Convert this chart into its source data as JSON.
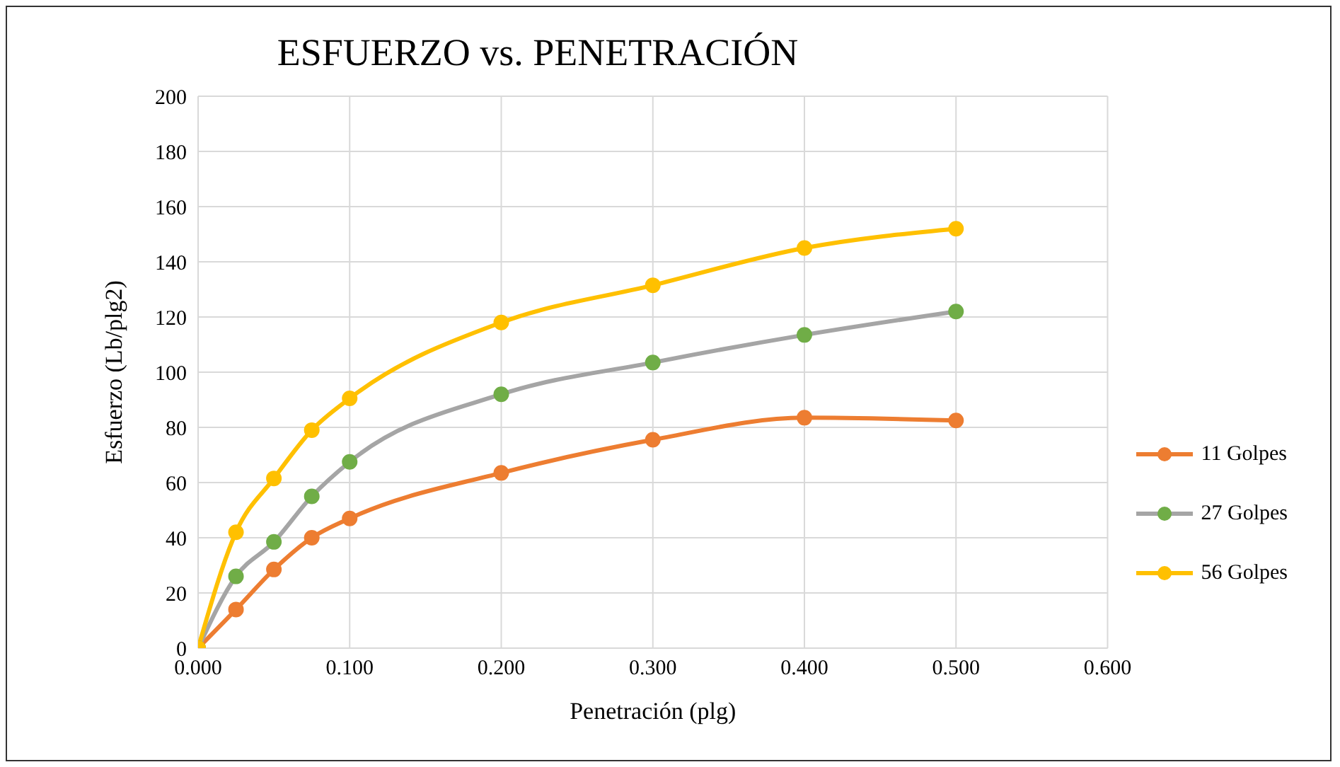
{
  "chart_data": {
    "type": "line",
    "title": "ESFUERZO vs. PENETRACIÓN",
    "xlabel": "Penetración (plg)",
    "ylabel": "Esfuerzo (Lb/plg2)",
    "x": [
      0,
      0.025,
      0.05,
      0.075,
      0.1,
      0.2,
      0.3,
      0.4,
      0.5
    ],
    "series": [
      {
        "name": "11 Golpes",
        "color": "#ed7d31",
        "values": [
          0,
          14,
          28.5,
          40,
          47,
          63.5,
          75.5,
          83.5,
          82.5
        ]
      },
      {
        "name": "27 Golpes",
        "color": "#a5a5a5",
        "colors": [
          "#70ad47",
          "#70ad47",
          "#70ad47",
          "#70ad47",
          "#70ad47",
          "#70ad47",
          "#70ad47",
          "#70ad47",
          "#70ad47"
        ],
        "values": [
          0,
          26,
          38.5,
          55,
          67.5,
          92,
          103.5,
          113.5,
          122
        ]
      },
      {
        "name": "56 Golpes",
        "color": "#ffc000",
        "values": [
          0,
          42,
          61.5,
          79,
          90.5,
          118,
          131.5,
          145,
          152
        ]
      }
    ],
    "xlim": [
      0,
      0.6
    ],
    "xticks": [
      {
        "value": 0,
        "label": "0.000"
      },
      {
        "value": 0.1,
        "label": "0.100"
      },
      {
        "value": 0.2,
        "label": "0.200"
      },
      {
        "value": 0.3,
        "label": "0.300"
      },
      {
        "value": 0.4,
        "label": "0.400"
      },
      {
        "value": 0.5,
        "label": "0.500"
      },
      {
        "value": 0.6,
        "label": "0.600"
      }
    ],
    "ylim": [
      0,
      200
    ],
    "yticks": [
      0,
      20,
      40,
      60,
      80,
      100,
      120,
      140,
      160,
      180,
      200
    ],
    "grid": true,
    "legend": "right",
    "marker": "circle"
  }
}
